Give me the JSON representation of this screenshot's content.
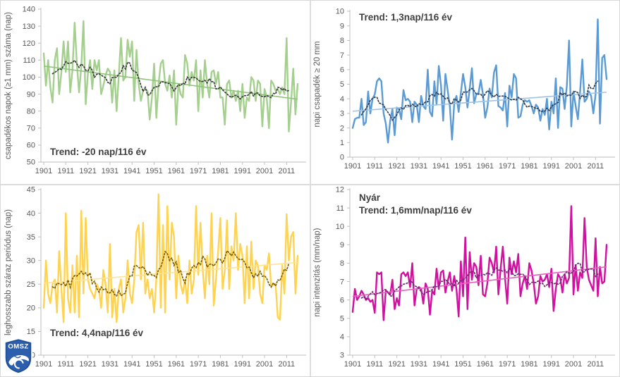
{
  "logo": {
    "text": "OMSZ"
  },
  "axis_style": {
    "axis_color": "#bfbfbf",
    "tick_label_color": "#595959",
    "annotation_color": "#3f3f3f"
  },
  "chart_data": [
    {
      "id": "csapadekos-napok",
      "type": "line",
      "position": "top-left",
      "title": "",
      "xlabel": "",
      "ylabel": "csapadékos napok (≥1 mm) száma (nap)",
      "annotation_lines": [
        "Trend: -20 nap/116 év"
      ],
      "ylim": [
        50,
        140
      ],
      "yticks": [
        50,
        60,
        70,
        80,
        90,
        100,
        110,
        120,
        130,
        140
      ],
      "x_start": 1901,
      "x_end": 2016,
      "xticks": [
        1901,
        1911,
        1921,
        1931,
        1941,
        1951,
        1961,
        1971,
        1981,
        1991,
        2001,
        2011
      ],
      "grid": false,
      "legend": "none",
      "colors": {
        "main": "#a4cf8e",
        "trend": "#8ec579",
        "smooth": "#3d3d3d"
      },
      "trend": {
        "start": 106.5,
        "end": 87
      },
      "values": [
        114,
        95,
        110,
        94,
        85,
        110,
        117,
        90,
        103,
        121,
        103,
        121,
        91,
        104,
        132,
        108,
        91,
        106,
        133,
        84,
        102,
        110,
        93,
        110,
        104,
        110,
        90,
        95,
        101,
        105,
        103,
        85,
        104,
        80,
        101,
        123,
        98,
        100,
        122,
        112,
        121,
        86,
        116,
        96,
        86,
        92,
        93,
        92,
        75,
        88,
        108,
        76,
        96,
        108,
        110,
        96,
        92,
        101,
        88,
        104,
        72,
        96,
        90,
        88,
        113,
        108,
        95,
        103,
        98,
        110,
        80,
        104,
        88,
        110,
        96,
        88,
        103,
        104,
        96,
        103,
        88,
        88,
        72,
        96,
        98,
        88,
        92,
        86,
        92,
        80,
        96,
        76,
        88,
        86,
        100,
        98,
        86,
        98,
        96,
        71,
        93,
        88,
        70,
        98,
        96,
        92,
        93,
        90,
        94,
        90,
        123,
        68,
        85,
        105,
        78,
        96
      ]
    },
    {
      "id": "napi-csapadek-20mm",
      "type": "line",
      "position": "top-right",
      "title": "",
      "xlabel": "",
      "ylabel": "napi csapadék ≥ 20 mm",
      "annotation_lines": [
        "Trend: 1,3nap/116 év"
      ],
      "ylim": [
        0,
        10
      ],
      "yticks": [
        0,
        1,
        2,
        3,
        4,
        5,
        6,
        7,
        8,
        9,
        10
      ],
      "x_start": 1901,
      "x_end": 2016,
      "xticks": [
        1901,
        1911,
        1921,
        1931,
        1941,
        1951,
        1961,
        1971,
        1981,
        1991,
        2001,
        2011
      ],
      "grid": false,
      "legend": "none",
      "colors": {
        "main": "#5b9bd5",
        "trend": "#9dc3e6",
        "smooth": "#333f50"
      },
      "trend": {
        "start": 3.15,
        "end": 4.45
      },
      "values": [
        2.0,
        2.6,
        2.7,
        2.7,
        4.0,
        2.2,
        2.4,
        4.5,
        3.0,
        4.0,
        4.3,
        5.2,
        5.4,
        5.2,
        3.0,
        2.3,
        1.0,
        2.5,
        3.3,
        1.5,
        3.4,
        3.3,
        2.6,
        4.6,
        3.9,
        4.0,
        3.8,
        2.4,
        3.8,
        3.6,
        2.4,
        4.2,
        3.5,
        3.3,
        6.0,
        3.1,
        2.8,
        5.2,
        3.6,
        6.25,
        4.9,
        2.5,
        5.7,
        4.6,
        3.5,
        1.2,
        3.7,
        4.2,
        3.1,
        4.4,
        5.7,
        4.8,
        3.4,
        4.7,
        6.1,
        3.7,
        4.3,
        4.4,
        5.3,
        4.3,
        2.7,
        3.4,
        4.7,
        4.1,
        5.8,
        6.3,
        3.5,
        3.4,
        3.2,
        4.4,
        2.1,
        4.9,
        4.1,
        5.7,
        5.4,
        2.7,
        2.8,
        3.6,
        3.9,
        3.8,
        3.9,
        3.5,
        3.0,
        3.6,
        3.4,
        2.5,
        3.3,
        2.9,
        4.0,
        1.9,
        3.8,
        3.0,
        5.4,
        2.0,
        4.8,
        4.7,
        3.3,
        4.9,
        8.0,
        2.1,
        4.5,
        3.5,
        2.6,
        4.5,
        6.7,
        3.8,
        4.0,
        4.5,
        4.2,
        3.0,
        4.3,
        9.45,
        2.3,
        6.8,
        7.0,
        5.35
      ]
    },
    {
      "id": "leghosszabb-szaraz-periodus",
      "type": "line",
      "position": "bottom-left",
      "title": "",
      "xlabel": "",
      "ylabel": "leghosszabb száraz periódus (nap)",
      "annotation_lines": [
        "Trend: 4,4nap/116 év"
      ],
      "ylim": [
        10,
        45
      ],
      "yticks": [
        10,
        15,
        20,
        25,
        30,
        35,
        40,
        45
      ],
      "x_start": 1901,
      "x_end": 2016,
      "xticks": [
        1901,
        1911,
        1921,
        1931,
        1941,
        1951,
        1961,
        1971,
        1981,
        1991,
        2001,
        2011
      ],
      "grid": false,
      "legend": "none",
      "colors": {
        "main": "#ffd34f",
        "trend": "#ffe293",
        "smooth": "#7f6000"
      },
      "trend": {
        "start": 25.2,
        "end": 29.6
      },
      "values": [
        20,
        30,
        23,
        21,
        25,
        26,
        19,
        32,
        24,
        17,
        40,
        22,
        19,
        29,
        19,
        31,
        18,
        40.5,
        23,
        39,
        26,
        24,
        23,
        22,
        25,
        24,
        20,
        28,
        25,
        19,
        33.5,
        18,
        24,
        17,
        24,
        26,
        19,
        22,
        30,
        23,
        21,
        26,
        36,
        37.5,
        26,
        38,
        23,
        26,
        22,
        24,
        19,
        26,
        44,
        20,
        37.5,
        19,
        41.5,
        26,
        38,
        35,
        22,
        31,
        25,
        23,
        26,
        21,
        30,
        23,
        26,
        41.5,
        27,
        38,
        28,
        22,
        31,
        25,
        40,
        20.5,
        26,
        32,
        39,
        24,
        28,
        38.5,
        24,
        33,
        30,
        40,
        28,
        33.5,
        31,
        21,
        33,
        22,
        34,
        24,
        30,
        29,
        23,
        21,
        29,
        28,
        31.5,
        24.5,
        25,
        25,
        18,
        17.5,
        29,
        23,
        39.8,
        30,
        35,
        36,
        23,
        31
      ]
    },
    {
      "id": "napi-intenzitas",
      "type": "line",
      "position": "bottom-right",
      "title": "",
      "xlabel": "",
      "ylabel": "napi intenzitás (mm/nap)",
      "annotation_lines": [
        "Nyár",
        "Trend: 1,6mm/nap/116 év"
      ],
      "ylim": [
        3,
        12
      ],
      "yticks": [
        3,
        4,
        5,
        6,
        7,
        8,
        9,
        10,
        11,
        12
      ],
      "x_start": 1901,
      "x_end": 2016,
      "xticks": [
        1901,
        1911,
        1921,
        1931,
        1941,
        1951,
        1961,
        1971,
        1981,
        1991,
        2001,
        2011
      ],
      "grid": false,
      "legend": "none",
      "colors": {
        "main": "#d0109e",
        "trend": "#ea5ec2",
        "smooth": "#6e2a79"
      },
      "trend": {
        "start": 6.2,
        "end": 7.8
      },
      "values": [
        5.35,
        6.6,
        6.0,
        6.2,
        6.5,
        6.3,
        6.0,
        6.1,
        5.9,
        6.0,
        5.3,
        7.5,
        7.4,
        7.5,
        4.9,
        6.5,
        6.4,
        6.3,
        7.1,
        5.5,
        6.1,
        5.7,
        7.4,
        7.5,
        7.3,
        7.5,
        6.7,
        8.0,
        5.7,
        6.6,
        6.7,
        6.6,
        5.8,
        6.9,
        6.6,
        5.2,
        6.5,
        6.3,
        7.7,
        6.6,
        7.5,
        7.6,
        6.4,
        7.0,
        7.5,
        6.5,
        7.3,
        6.6,
        5.1,
        8.1,
        6.2,
        9.4,
        5.5,
        8.6,
        7.1,
        8.0,
        7.8,
        6.8,
        8.4,
        6.3,
        6.2,
        6.9,
        8.3,
        8.0,
        7.5,
        8.9,
        6.3,
        7.7,
        8.9,
        7.2,
        5.8,
        8.3,
        7.4,
        8.1,
        7.5,
        8.5,
        6.2,
        6.9,
        7.3,
        6.6,
        8.0,
        7.6,
        6.9,
        5.8,
        6.2,
        7.3,
        7.0,
        7.1,
        7.4,
        6.7,
        7.7,
        5.4,
        6.6,
        7.4,
        7.2,
        6.4,
        7.4,
        6.9,
        7.2,
        11.1,
        6.3,
        7.9,
        6.5,
        7.5,
        7.2,
        10.45,
        7.8,
        7.1,
        6.8,
        6.5,
        9.35,
        6.2,
        7.8,
        6.9,
        7.0,
        9.0
      ]
    }
  ]
}
